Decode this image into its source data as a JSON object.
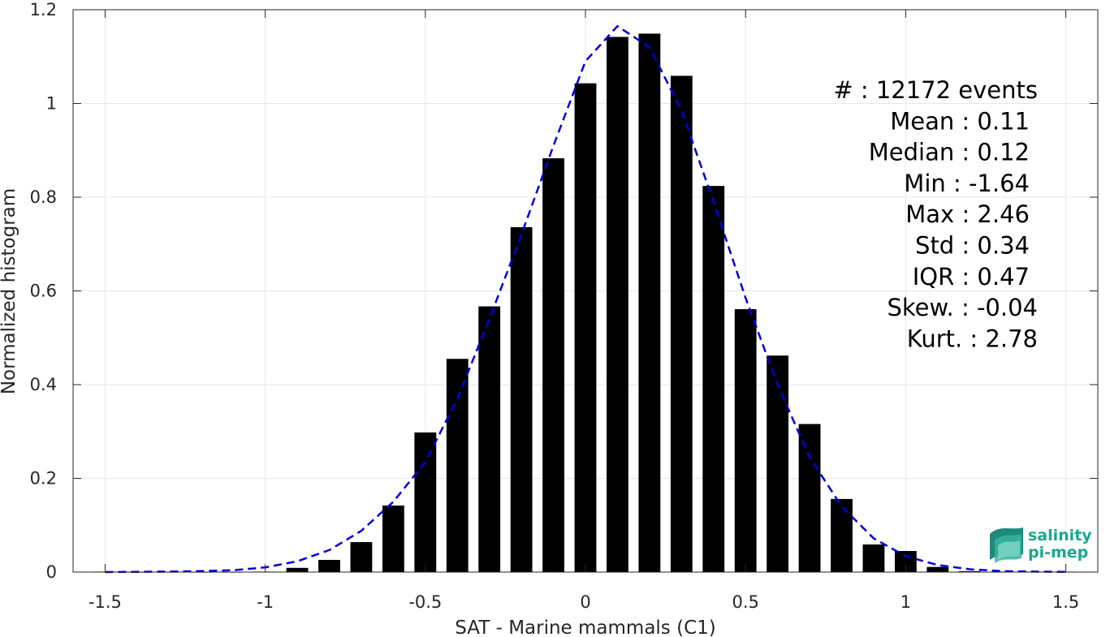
{
  "chart_data": {
    "type": "bar",
    "xlabel": "SAT - Marine mammals (C1)",
    "ylabel": "Normalized histogram",
    "xlim": [
      -1.6,
      1.6
    ],
    "ylim": [
      0,
      1.2
    ],
    "xticks": [
      -1.5,
      -1,
      -0.5,
      0,
      0.5,
      1,
      1.5
    ],
    "xtick_labels": [
      "-1.5",
      "-1",
      "-0.5",
      "0",
      "0.5",
      "1",
      "1.5"
    ],
    "yticks": [
      0,
      0.2,
      0.4,
      0.6,
      0.8,
      1,
      1.2
    ],
    "ytick_labels": [
      "0",
      "0.2",
      "0.4",
      "0.6",
      "0.8",
      "1",
      "1.2"
    ],
    "grid": true,
    "bar_color": "#000000",
    "bins": [
      -1.5,
      -1.4,
      -1.3,
      -1.2,
      -1.1,
      -1.0,
      -0.9,
      -0.8,
      -0.7,
      -0.6,
      -0.5,
      -0.4,
      -0.3,
      -0.2,
      -0.1,
      0.0,
      0.1,
      0.2,
      0.3,
      0.4,
      0.5,
      0.6,
      0.7,
      0.8,
      0.9,
      1.0,
      1.1,
      1.2,
      1.3,
      1.4,
      1.5
    ],
    "values": [
      0.001,
      0,
      0,
      0,
      0,
      0.001,
      0.009,
      0.026,
      0.064,
      0.142,
      0.298,
      0.455,
      0.567,
      0.736,
      0.883,
      1.043,
      1.142,
      1.149,
      1.059,
      0.824,
      0.561,
      0.462,
      0.316,
      0.156,
      0.059,
      0.045,
      0.011,
      0.002,
      0.001,
      0.001,
      0.001
    ],
    "fit_line": {
      "color": "#0000dd",
      "style": "dashed",
      "x": [
        -1.5,
        -1.4,
        -1.3,
        -1.2,
        -1.1,
        -1.0,
        -0.9,
        -0.8,
        -0.7,
        -0.6,
        -0.5,
        -0.4,
        -0.3,
        -0.2,
        -0.1,
        0.0,
        0.1,
        0.2,
        0.3,
        0.4,
        0.5,
        0.6,
        0.7,
        0.8,
        0.9,
        1.0,
        1.1,
        1.2,
        1.3,
        1.4,
        1.5
      ],
      "y": [
        0.0,
        0.0005,
        0.001,
        0.002,
        0.004,
        0.01,
        0.023,
        0.047,
        0.088,
        0.15,
        0.235,
        0.37,
        0.54,
        0.72,
        0.91,
        1.09,
        1.165,
        1.12,
        0.985,
        0.79,
        0.585,
        0.4,
        0.245,
        0.14,
        0.072,
        0.034,
        0.015,
        0.006,
        0.002,
        0.001,
        0.0005
      ]
    },
    "stats": [
      {
        "label": "#  : 12172 events"
      },
      {
        "label": "Mean : 0.11"
      },
      {
        "label": "Median : 0.12"
      },
      {
        "label": "Min : -1.64"
      },
      {
        "label": "Max : 2.46"
      },
      {
        "label": "Std : 0.34"
      },
      {
        "label": "IQR : 0.47"
      },
      {
        "label": "Skew. : -0.04"
      },
      {
        "label": "Kurt. : 2.78"
      }
    ]
  },
  "logo": {
    "line1": "salinity",
    "line2": "pi-mep",
    "color": "#1aa88e"
  }
}
